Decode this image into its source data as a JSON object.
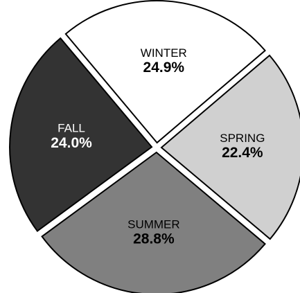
{
  "chart_data": {
    "type": "pie",
    "categories": [
      "WINTER",
      "SPRING",
      "SUMMER",
      "FALL"
    ],
    "values": [
      24.9,
      22.4,
      28.8,
      24.0
    ],
    "value_labels": [
      "24.9%",
      "22.4%",
      "28.8%",
      "24.0%"
    ],
    "colors": [
      "#ffffff",
      "#d0d0d0",
      "#808080",
      "#333333"
    ]
  }
}
